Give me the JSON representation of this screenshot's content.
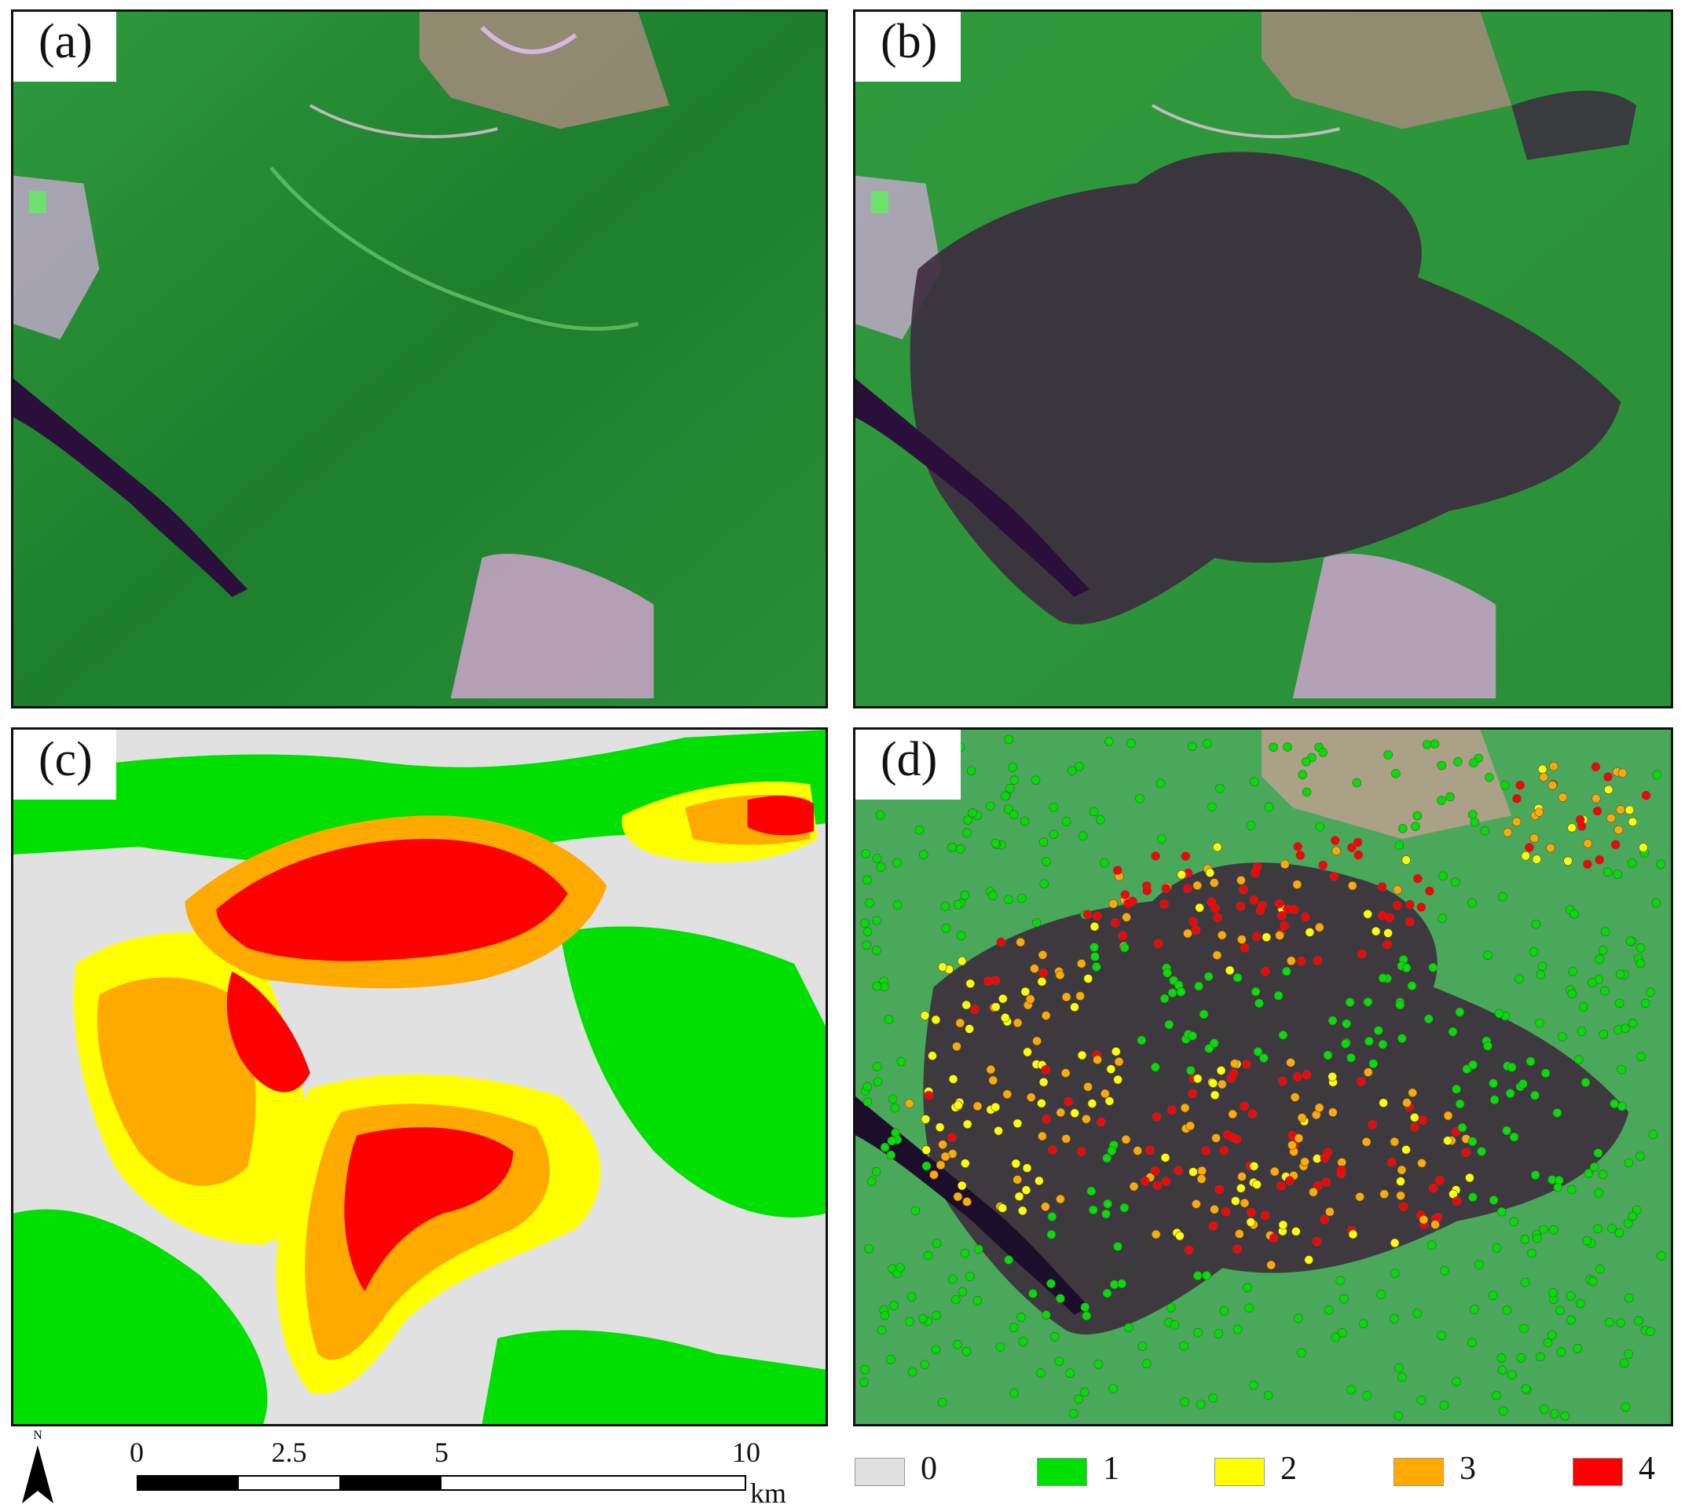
{
  "panels": [
    {
      "id": "a",
      "label": "(a)",
      "kind": "satellite-prefire"
    },
    {
      "id": "b",
      "label": "(b)",
      "kind": "satellite-postfire"
    },
    {
      "id": "c",
      "label": "(c)",
      "kind": "severity-classification-map"
    },
    {
      "id": "d",
      "label": "(d)",
      "kind": "severity-sample-points"
    }
  ],
  "scale_bar": {
    "ticks": [
      "0",
      "2.5",
      "5",
      "10"
    ],
    "unit": "km"
  },
  "north_arrow": {
    "label": "N",
    "icon": "north-arrow-icon"
  },
  "legend": {
    "items": [
      {
        "label": "0",
        "color": "#e1e1e1"
      },
      {
        "label": "1",
        "color": "#00e000"
      },
      {
        "label": "2",
        "color": "#ffff00"
      },
      {
        "label": "3",
        "color": "#ffaa00"
      },
      {
        "label": "4",
        "color": "#ff0000"
      }
    ]
  },
  "colors": {
    "forest": "#1f8a2e",
    "burn_scar": "#3a2a3a",
    "water": "#2a0f3a",
    "urban": "#d9a6d8",
    "bare": "#b79a86",
    "background_class0": "#e1e1e1"
  }
}
